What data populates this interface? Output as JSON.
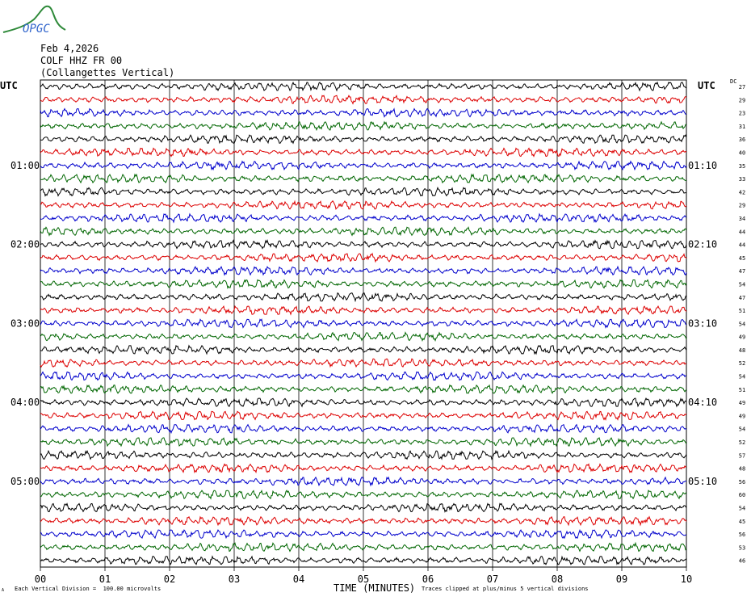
{
  "logo_text": "OPGC",
  "header": {
    "date": "Feb 4,2026",
    "station": "COLF HHZ FR 00",
    "name": "(Collangettes Vertical)"
  },
  "utc_left": "UTC",
  "utc_right": "UTC",
  "dc_label": "DC",
  "footnote_left": "Each Vertical Division =  100.00 microvolts",
  "footnote_right": "Traces clipped at plus/minus 5 vertical divisions",
  "corner_mark": "A",
  "colors": {
    "trace_cycle": [
      "#000000",
      "#dd0000",
      "#0000cc",
      "#006600"
    ],
    "logo": "#2f8a3a",
    "logo_text": "#3366cc"
  },
  "chart_data": {
    "type": "line",
    "title": "COLF HHZ FR 00 (Collangettes Vertical)",
    "xlabel": "TIME (MINUTES)",
    "x_ticks": [
      "00",
      "01",
      "02",
      "03",
      "04",
      "05",
      "06",
      "07",
      "08",
      "09",
      "10"
    ],
    "xlim": [
      0,
      10
    ],
    "left_hour_labels": [
      {
        "row": 6,
        "label": "01:00"
      },
      {
        "row": 12,
        "label": "02:00"
      },
      {
        "row": 18,
        "label": "03:00"
      },
      {
        "row": 24,
        "label": "04:00"
      },
      {
        "row": 30,
        "label": "05:00"
      }
    ],
    "right_hour_labels": [
      {
        "row": 6,
        "label": "01:10"
      },
      {
        "row": 12,
        "label": "02:10"
      },
      {
        "row": 18,
        "label": "03:10"
      },
      {
        "row": 24,
        "label": "04:10"
      },
      {
        "row": 30,
        "label": "05:10"
      }
    ],
    "dc_values": [
      "27",
      "29",
      "23",
      "31",
      "36",
      "40",
      "35",
      "33",
      "42",
      "29",
      "34",
      "44",
      "44",
      "45",
      "47",
      "54",
      "47",
      "51",
      "54",
      "49",
      "48",
      "52",
      "54",
      "51",
      "49",
      "49",
      "54",
      "52",
      "57",
      "48",
      "56",
      "60",
      "54",
      "45",
      "56",
      "53",
      "46"
    ],
    "amplitude_units": "microvolts",
    "division_value": 100,
    "clip_divisions": 5,
    "grid": true
  }
}
